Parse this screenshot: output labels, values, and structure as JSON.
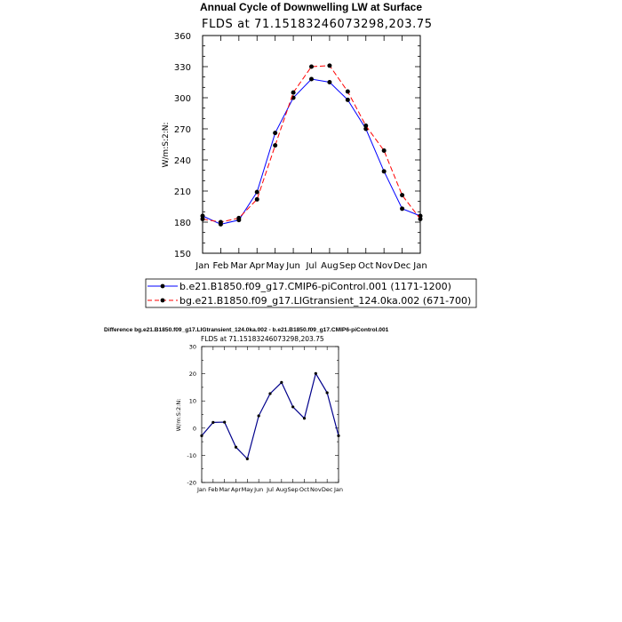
{
  "chart_data": [
    {
      "type": "line",
      "title": "Annual Cycle of Downwelling LW at Surface",
      "subtitle": "FLDS at 71.15183246073298,203.75",
      "xlabel": "",
      "ylabel": "W/m:S:2:N:",
      "categories": [
        "Jan",
        "Feb",
        "Mar",
        "Apr",
        "May",
        "Jun",
        "Jul",
        "Aug",
        "Sep",
        "Oct",
        "Nov",
        "Dec",
        "Jan"
      ],
      "ylim": [
        150,
        360
      ],
      "yticks": [
        "150",
        "180",
        "210",
        "240",
        "270",
        "300",
        "330",
        "360"
      ],
      "series": [
        {
          "name": "b.e21.B1850.f09_g17.CMIP6-piControl.001 (1171-1200)",
          "color": "#0000ff",
          "style": "solid",
          "values": [
            186,
            178,
            182,
            209,
            266,
            300,
            318,
            315,
            298,
            270,
            229,
            193,
            186
          ]
        },
        {
          "name": "bg.e21.B1850.f09_g17.LIGtransient_124.0ka.002 (671-700)",
          "color": "#ff0000",
          "style": "dashed",
          "values": [
            183,
            180,
            184,
            202,
            254,
            305,
            330,
            331,
            306,
            273,
            249,
            206,
            183
          ]
        }
      ]
    },
    {
      "type": "line",
      "title": "Difference bg.e21.B1850.f09_g17.LIGtransient_124.0ka.002 - b.e21.B1850.f09_g17.CMIP6-piControl.001",
      "subtitle": "FLDS at 71.15183246073298,203.75",
      "xlabel": "",
      "ylabel": "W/m:S:2:N:",
      "categories": [
        "Jan",
        "Feb",
        "Mar",
        "Apr",
        "May",
        "Jun",
        "Jul",
        "Aug",
        "Sep",
        "Oct",
        "Nov",
        "Dec",
        "Jan"
      ],
      "ylim": [
        -20,
        30
      ],
      "yticks": [
        "-20",
        "-10",
        "0",
        "10",
        "20",
        "30"
      ],
      "series": [
        {
          "name": "difference",
          "color": "#00008b",
          "style": "solid",
          "values": [
            -2.8,
            2.1,
            2.2,
            -7.0,
            -11.3,
            4.5,
            12.7,
            16.8,
            7.8,
            3.6,
            20.1,
            13.0,
            -2.8
          ]
        }
      ]
    }
  ]
}
